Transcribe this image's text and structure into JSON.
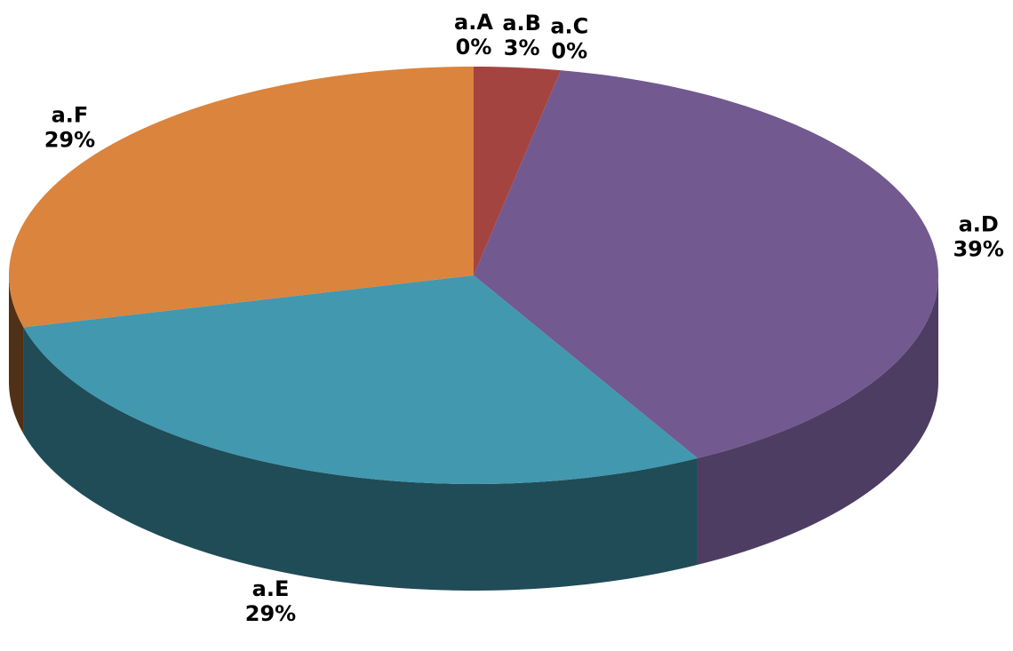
{
  "chart_data": {
    "type": "pie",
    "three_d": true,
    "categories": [
      "a.A",
      "a.B",
      "a.C",
      "a.D",
      "a.E",
      "a.F"
    ],
    "values": [
      0,
      3,
      0,
      39,
      29,
      29
    ],
    "value_labels": [
      "0%",
      "3%",
      "0%",
      "39%",
      "29%",
      "29%"
    ],
    "colors": [
      "#4f81bd",
      "#a44441",
      "#89a54e",
      "#725990",
      "#4198af",
      "#db843d"
    ]
  }
}
